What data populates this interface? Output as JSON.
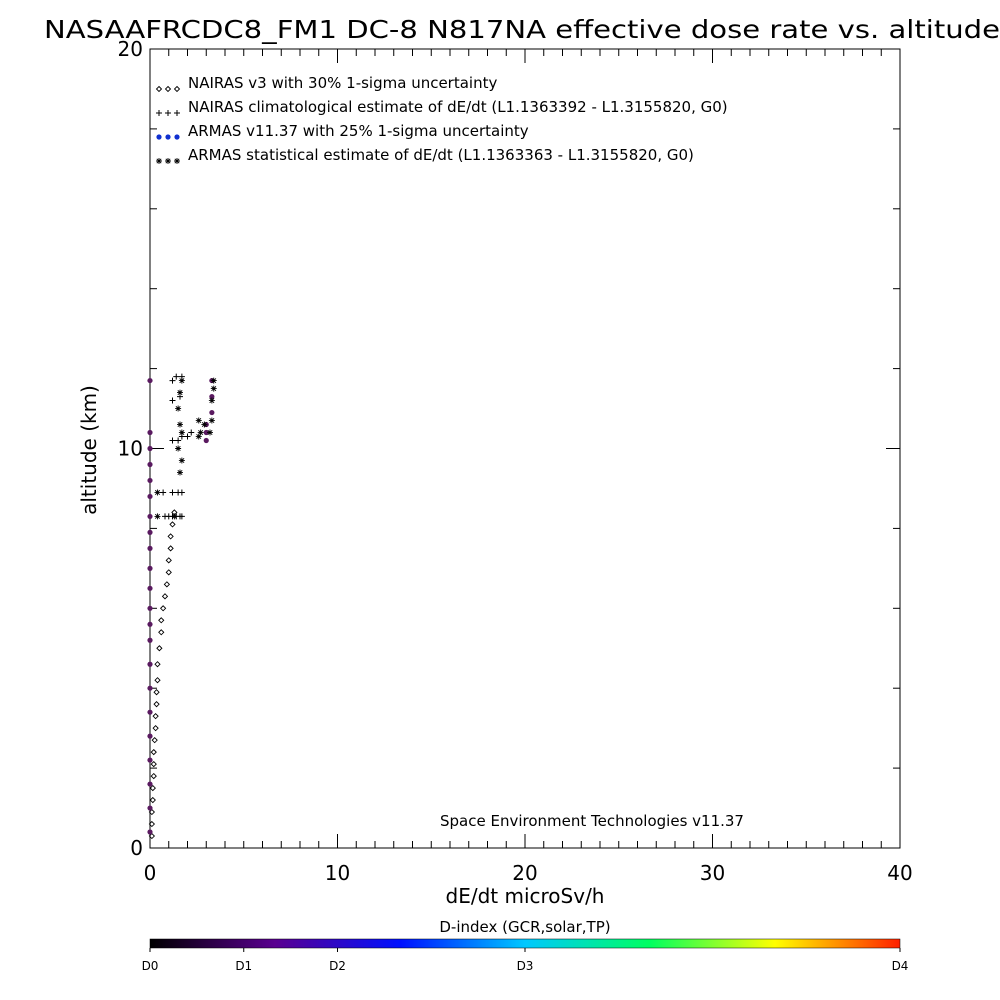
{
  "colors": {
    "axis": "#000000",
    "nairas_v3": "#000000",
    "nairas_clim": "#000000",
    "armas": "#1030d0",
    "armas_stat": "#000000",
    "armas_point_fill": "#5a1a60"
  },
  "colorbar": {
    "title": "D-index (GCR,solar,TP)",
    "labels": [
      "D0",
      "D1",
      "D2",
      "D3",
      "D4"
    ],
    "label_values": [
      0,
      0.125,
      0.25,
      0.5,
      1.0
    ],
    "gradient_colors": [
      "#000000",
      "#5a0090",
      "#0010ff",
      "#00c8ff",
      "#00ff60",
      "#ffff00",
      "#ff2000"
    ]
  },
  "chart_data": {
    "type": "scatter",
    "title": "NASAAFRCDC8_FM1 DC-8   N817NA effective dose rate vs. altitude",
    "xlabel": "dE/dt microSv/h",
    "ylabel": "altitude (km)",
    "xlim": [
      0,
      40
    ],
    "ylim": [
      0,
      20
    ],
    "xticks": [
      0,
      10,
      20,
      30,
      40
    ],
    "yticks": [
      0,
      10,
      20
    ],
    "x_minor_step": 1,
    "y_minor_step": 2,
    "legend_position": "top-left",
    "annotation": "Space Environment Technologies v11.37",
    "series": [
      {
        "name": "NAIRAS v3 with 30% 1-sigma uncertainty",
        "marker": "diamond",
        "points": [
          [
            0.1,
            0.3
          ],
          [
            0.1,
            0.6
          ],
          [
            0.1,
            0.9
          ],
          [
            0.15,
            1.2
          ],
          [
            0.15,
            1.5
          ],
          [
            0.2,
            1.8
          ],
          [
            0.2,
            2.1
          ],
          [
            0.2,
            2.4
          ],
          [
            0.25,
            2.7
          ],
          [
            0.3,
            3.0
          ],
          [
            0.3,
            3.3
          ],
          [
            0.35,
            3.6
          ],
          [
            0.35,
            3.9
          ],
          [
            0.4,
            4.2
          ],
          [
            0.4,
            4.6
          ],
          [
            0.5,
            5.0
          ],
          [
            0.6,
            5.4
          ],
          [
            0.6,
            5.7
          ],
          [
            0.7,
            6.0
          ],
          [
            0.8,
            6.3
          ],
          [
            0.9,
            6.6
          ],
          [
            1.0,
            6.9
          ],
          [
            1.0,
            7.2
          ],
          [
            1.1,
            7.5
          ],
          [
            1.1,
            7.8
          ],
          [
            1.2,
            8.1
          ],
          [
            1.3,
            8.4
          ]
        ]
      },
      {
        "name": "NAIRAS climatological estimate of dE/dt (L1.1363392 - L1.3155820, G0)",
        "marker": "plus",
        "points": [
          [
            0.8,
            8.3
          ],
          [
            1.0,
            8.3
          ],
          [
            1.2,
            8.3
          ],
          [
            1.4,
            8.3
          ],
          [
            1.6,
            8.3
          ],
          [
            1.7,
            8.3
          ],
          [
            0.7,
            8.9
          ],
          [
            1.2,
            8.9
          ],
          [
            1.5,
            8.9
          ],
          [
            1.7,
            8.9
          ],
          [
            1.2,
            10.2
          ],
          [
            1.5,
            10.2
          ],
          [
            1.7,
            10.3
          ],
          [
            2.0,
            10.3
          ],
          [
            2.2,
            10.4
          ],
          [
            1.2,
            11.2
          ],
          [
            1.6,
            11.3
          ],
          [
            1.2,
            11.7
          ],
          [
            1.4,
            11.8
          ],
          [
            1.7,
            11.8
          ]
        ]
      },
      {
        "name": "ARMAS v11.37 with 25% 1-sigma uncertainty",
        "marker": "dot",
        "points": [
          [
            0,
            0.4
          ],
          [
            0,
            1.0
          ],
          [
            0,
            1.6
          ],
          [
            0,
            2.2
          ],
          [
            0,
            2.8
          ],
          [
            0,
            3.4
          ],
          [
            0,
            4.0
          ],
          [
            0,
            4.6
          ],
          [
            0,
            5.2
          ],
          [
            0,
            5.6
          ],
          [
            0,
            6.0
          ],
          [
            0,
            6.5
          ],
          [
            0,
            7.0
          ],
          [
            0,
            7.5
          ],
          [
            0,
            7.9
          ],
          [
            0,
            8.3
          ],
          [
            0,
            8.8
          ],
          [
            0,
            9.2
          ],
          [
            0,
            9.6
          ],
          [
            0,
            10.0
          ],
          [
            0,
            10.4
          ],
          [
            0,
            11.7
          ],
          [
            3.0,
            10.2
          ],
          [
            3.0,
            10.4
          ],
          [
            3.0,
            10.6
          ],
          [
            3.3,
            10.9
          ],
          [
            3.3,
            11.3
          ],
          [
            3.3,
            11.7
          ]
        ]
      },
      {
        "name": "ARMAS statistical estimate of dE/dt (L1.1363363 - L1.3155820, G0)",
        "marker": "asterisk",
        "points": [
          [
            0.4,
            8.9
          ],
          [
            0.4,
            8.3
          ],
          [
            1.3,
            8.3
          ],
          [
            1.6,
            9.4
          ],
          [
            1.7,
            9.7
          ],
          [
            1.5,
            10.0
          ],
          [
            1.7,
            10.4
          ],
          [
            1.6,
            10.6
          ],
          [
            2.6,
            10.3
          ],
          [
            2.7,
            10.4
          ],
          [
            2.9,
            10.6
          ],
          [
            2.6,
            10.7
          ],
          [
            3.2,
            10.4
          ],
          [
            3.3,
            10.7
          ],
          [
            1.5,
            11.0
          ],
          [
            1.6,
            11.4
          ],
          [
            1.7,
            11.7
          ],
          [
            3.3,
            11.2
          ],
          [
            3.4,
            11.5
          ],
          [
            3.4,
            11.7
          ]
        ]
      }
    ]
  }
}
